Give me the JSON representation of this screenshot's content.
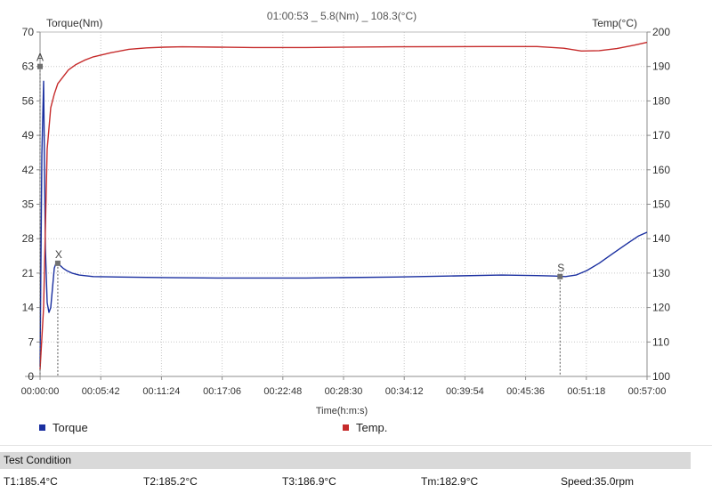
{
  "header": {
    "readout": "01:00:53 _ 5.8(Nm) _ 108.3(°C)"
  },
  "colors": {
    "torque": "#1a2fa0",
    "temp": "#c62b2b",
    "grid": "#c8c8c8",
    "axis": "#8c8c8c",
    "marker": "#555555"
  },
  "chart_data": {
    "type": "line",
    "xlabel": "Time(h:m:s)",
    "y_left_label": "Torque(Nm)",
    "y_right_label": "Temp(°C)",
    "x_ticks": [
      "00:00:00",
      "00:05:42",
      "00:11:24",
      "00:17:06",
      "00:22:48",
      "00:28:30",
      "00:34:12",
      "00:39:54",
      "00:45:36",
      "00:51:18",
      "00:57:00"
    ],
    "xlim_seconds": [
      0,
      3420
    ],
    "y_left_ticks": [
      "0",
      "7",
      "14",
      "21",
      "28",
      "35",
      "42",
      "49",
      "56",
      "63",
      "70"
    ],
    "y_left_lim": [
      0,
      70
    ],
    "y_right_ticks": [
      "100",
      "110",
      "120",
      "130",
      "140",
      "150",
      "160",
      "170",
      "180",
      "190",
      "200"
    ],
    "y_right_lim": [
      100,
      200
    ],
    "grid": true,
    "legend_position": "bottom",
    "series": [
      {
        "name": "Torque",
        "axis": "left",
        "x": [
          0,
          10,
          20,
          30,
          40,
          50,
          60,
          70,
          80,
          90,
          100,
          115,
          130,
          150,
          180,
          220,
          300,
          450,
          700,
          1000,
          1500,
          2000,
          2300,
          2600,
          2800,
          2900,
          2960,
          3020,
          3080,
          3150,
          3220,
          3300,
          3370,
          3420
        ],
        "y": [
          2,
          45,
          60,
          26,
          15,
          13,
          14,
          18,
          22,
          23,
          23,
          22.5,
          22,
          21.5,
          21,
          20.6,
          20.3,
          20.2,
          20.1,
          20.0,
          20.0,
          20.2,
          20.4,
          20.6,
          20.5,
          20.4,
          20.3,
          20.6,
          21.5,
          23.0,
          24.8,
          26.8,
          28.5,
          29.3
        ]
      },
      {
        "name": "Temp.",
        "axis": "right",
        "x": [
          0,
          20,
          40,
          60,
          80,
          100,
          130,
          160,
          200,
          250,
          300,
          400,
          500,
          600,
          700,
          800,
          1000,
          1200,
          1500,
          2000,
          2500,
          2800,
          2950,
          3050,
          3150,
          3250,
          3350,
          3420
        ],
        "y": [
          102,
          120,
          166,
          178,
          182,
          185,
          187,
          189,
          190.5,
          191.8,
          192.8,
          194,
          195,
          195.4,
          195.6,
          195.7,
          195.6,
          195.5,
          195.5,
          195.7,
          195.8,
          195.8,
          195.3,
          194.5,
          194.6,
          195.2,
          196.2,
          197
        ]
      }
    ],
    "markers": [
      {
        "label": "A",
        "x": 0,
        "axis": "left",
        "y": 63
      },
      {
        "label": "X",
        "x": 100,
        "axis": "left",
        "y": 23
      },
      {
        "label": "S",
        "x": 2930,
        "axis": "left",
        "y": 20.3
      }
    ]
  },
  "test_condition": {
    "title": "Test Condition",
    "items": [
      "T1:185.4°C",
      "T2:185.2°C",
      "T3:186.9°C",
      "Tm:182.9°C",
      "Speed:35.0rpm"
    ]
  }
}
